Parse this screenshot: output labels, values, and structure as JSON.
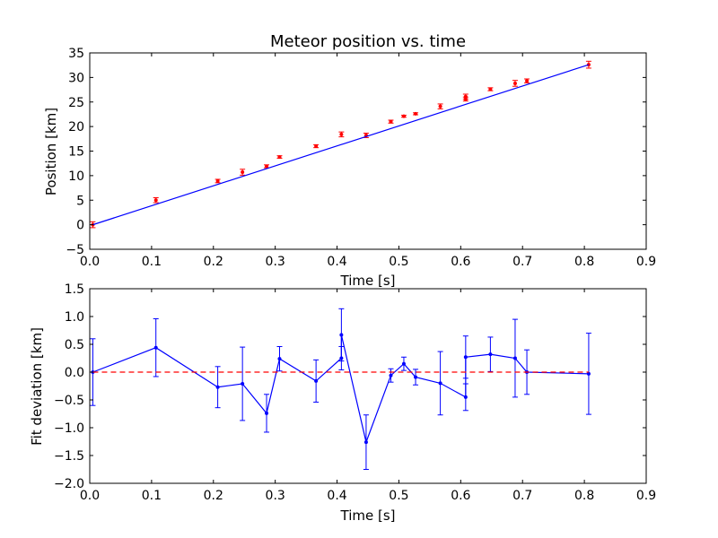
{
  "chart_data": [
    {
      "type": "scatter",
      "title": "Meteor position vs. time",
      "xlabel": "Time [s]",
      "ylabel": "Position [km]",
      "xlim": [
        0.0,
        0.9
      ],
      "ylim": [
        -5,
        35
      ],
      "xticks": [
        "0.0",
        "0.1",
        "0.2",
        "0.3",
        "0.4",
        "0.5",
        "0.6",
        "0.7",
        "0.8",
        "0.9"
      ],
      "yticks": [
        "−5",
        "0",
        "5",
        "10",
        "15",
        "20",
        "25",
        "30",
        "35"
      ],
      "grid": false,
      "series": [
        {
          "kind": "errorbar-points",
          "color": "#ff0000",
          "x": [
            0.005,
            0.107,
            0.207,
            0.247,
            0.286,
            0.307,
            0.366,
            0.407,
            0.447,
            0.487,
            0.508,
            0.527,
            0.567,
            0.608,
            0.608,
            0.648,
            0.688,
            0.707,
            0.807
          ],
          "y": [
            0.0,
            5.0,
            8.9,
            10.7,
            11.9,
            13.8,
            16.0,
            18.4,
            18.2,
            21.0,
            22.1,
            22.6,
            24.1,
            26.1,
            25.6,
            27.6,
            28.8,
            29.3,
            32.6
          ],
          "yerr": [
            0.6,
            0.5,
            0.35,
            0.6,
            0.3,
            0.25,
            0.3,
            0.5,
            0.45,
            0.3,
            0.2,
            0.2,
            0.5,
            0.5,
            0.4,
            0.3,
            0.6,
            0.4,
            0.7
          ]
        },
        {
          "kind": "fit-line",
          "color": "#0000ff",
          "x": [
            0.005,
            0.807
          ],
          "y": [
            0.0,
            32.6
          ]
        }
      ]
    },
    {
      "type": "line",
      "title": "",
      "xlabel": "Time [s]",
      "ylabel": "Fit deviation [km]",
      "xlim": [
        0.0,
        0.9
      ],
      "ylim": [
        -2.0,
        1.5
      ],
      "xticks": [
        "0.0",
        "0.1",
        "0.2",
        "0.3",
        "0.4",
        "0.5",
        "0.6",
        "0.7",
        "0.8",
        "0.9"
      ],
      "yticks": [
        "−2.0",
        "−1.5",
        "−1.0",
        "−0.5",
        "0.0",
        "0.5",
        "1.0",
        "1.5"
      ],
      "grid": false,
      "series": [
        {
          "kind": "errorbar-line",
          "color": "#0000ff",
          "x": [
            0.005,
            0.107,
            0.207,
            0.247,
            0.286,
            0.307,
            0.366,
            0.407,
            0.407,
            0.447,
            0.487,
            0.508,
            0.527,
            0.567,
            0.608,
            0.608,
            0.648,
            0.688,
            0.707,
            0.807
          ],
          "y": [
            0.0,
            0.44,
            -0.27,
            -0.21,
            -0.74,
            0.24,
            -0.16,
            0.25,
            0.67,
            -1.26,
            -0.06,
            0.15,
            -0.09,
            -0.2,
            -0.45,
            0.27,
            0.32,
            0.25,
            0.0,
            -0.03
          ],
          "yerr": [
            0.6,
            0.52,
            0.37,
            0.66,
            0.34,
            0.22,
            0.38,
            0.21,
            0.47,
            0.49,
            0.12,
            0.12,
            0.14,
            0.57,
            0.24,
            0.38,
            0.31,
            0.7,
            0.4,
            0.73
          ]
        },
        {
          "kind": "reference-line",
          "color": "#ff0000",
          "dashed": true,
          "x": [
            0.005,
            0.807
          ],
          "y": [
            0.0,
            0.0
          ]
        }
      ]
    }
  ]
}
